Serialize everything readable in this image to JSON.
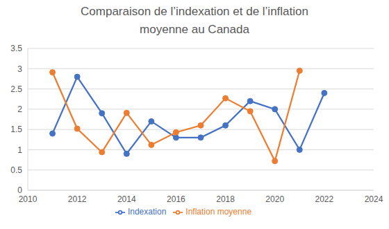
{
  "chart_data": {
    "type": "line",
    "title": "Comparaison de l’indexation et de l’inflation moyenne au Canada",
    "x": [
      2011,
      2012,
      2013,
      2014,
      2015,
      2016,
      2017,
      2018,
      2019,
      2020,
      2021,
      2022
    ],
    "series": [
      {
        "name": "Indexation",
        "color": "#4472c4",
        "marker": "circle",
        "values": [
          1.4,
          2.8,
          1.9,
          0.9,
          1.7,
          1.3,
          1.3,
          1.6,
          2.2,
          2.0,
          1.0,
          2.4
        ]
      },
      {
        "name": "Inflation moyenne",
        "color": "#ed7d31",
        "marker": "circle",
        "values": [
          2.91,
          1.52,
          0.94,
          1.91,
          1.12,
          1.43,
          1.6,
          2.27,
          1.95,
          0.72,
          2.95,
          null
        ]
      }
    ],
    "xlim": [
      2010,
      2024
    ],
    "xticks": [
      2010,
      2012,
      2014,
      2016,
      2018,
      2020,
      2022,
      2024
    ],
    "ylim": [
      0,
      3.5
    ],
    "yticks": [
      0,
      0.5,
      1,
      1.5,
      2,
      2.5,
      3,
      3.5
    ],
    "grid": true,
    "legend": "bottom"
  }
}
